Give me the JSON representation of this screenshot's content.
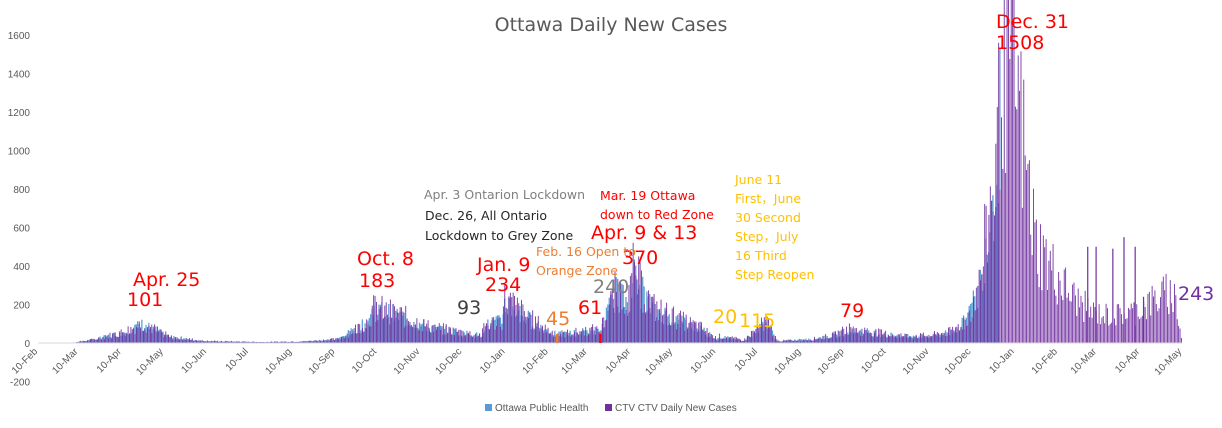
{
  "chart_data": {
    "type": "bar",
    "title": "Ottawa Daily New Cases",
    "xlabel": "",
    "ylabel": "",
    "ylim": [
      -200,
      1600
    ],
    "yticks": [
      "-200",
      "0",
      "200",
      "400",
      "600",
      "800",
      "1000",
      "1200",
      "1400",
      "1600"
    ],
    "x_tick_labels": [
      "10-Feb",
      "10-Mar",
      "10-Apr",
      "10-May",
      "10-Jun",
      "10-Jul",
      "10-Aug",
      "10-Sep",
      "10-Oct",
      "10-Nov",
      "10-Dec",
      "10-Jan",
      "10-Feb",
      "10-Mar",
      "10-Apr",
      "10-May",
      "10-Jun",
      "10-Jul",
      "10-Aug",
      "10-Sep",
      "10-Oct",
      "10-Nov",
      "10-Dec",
      "10-Jan",
      "10-Feb",
      "10-Mar",
      "10-Apr",
      "10-May"
    ],
    "x_start_date": "2020-02-10",
    "x_end_date": "2022-05-10",
    "legend_position": "bottom",
    "grid": false,
    "series": [
      {
        "name": "Ottawa Public Health",
        "color": "#5b9bd5"
      },
      {
        "name": "CTV CTV Daily New Cases",
        "color": "#7030a0"
      }
    ],
    "key_points": [
      {
        "date": "2020-04-25",
        "value": 101
      },
      {
        "date": "2020-10-08",
        "value": 183
      },
      {
        "date": "2020-12-26",
        "value": 93
      },
      {
        "date": "2021-01-09",
        "value": 234
      },
      {
        "date": "2021-02-16",
        "value": 45
      },
      {
        "date": "2021-03-19",
        "value": 61
      },
      {
        "date": "2021-04-03",
        "value": 240
      },
      {
        "date": "2021-04-11",
        "value": 370
      },
      {
        "date": "2021-06-11",
        "value": 20
      },
      {
        "date": "2021-07-16",
        "value": 115
      },
      {
        "date": "2021-09-15",
        "value": 79
      },
      {
        "date": "2021-12-31",
        "value": 1508
      },
      {
        "date": "2022-05-03",
        "value": 243
      }
    ],
    "annotations": [
      {
        "lines": [
          "Apr. 25",
          "101"
        ],
        "color": "#ff0000"
      },
      {
        "lines": [
          "Oct. 8",
          "183"
        ],
        "color": "#ff0000"
      },
      {
        "lines": [
          "93"
        ],
        "color": "#404040"
      },
      {
        "lines": [
          "Jan. 9",
          "234"
        ],
        "color": "#ff0000"
      },
      {
        "lines": [
          "45"
        ],
        "color": "#ed7d31"
      },
      {
        "lines": [
          "61"
        ],
        "color": "#ff0000"
      },
      {
        "lines": [
          "240"
        ],
        "color": "#808080"
      },
      {
        "lines": [
          "Apr. 9 & 13",
          "370"
        ],
        "color": "#ff0000"
      },
      {
        "lines": [
          "20"
        ],
        "color": "#ffc000"
      },
      {
        "lines": [
          "115"
        ],
        "color": "#ffc000"
      },
      {
        "lines": [
          "79"
        ],
        "color": "#ff0000"
      },
      {
        "lines": [
          "Dec. 31",
          "1508"
        ],
        "color": "#ff0000"
      },
      {
        "lines": [
          "243"
        ],
        "color": "#7030a0"
      },
      {
        "lines": [
          "Apr. 3 Ontarion Lockdown"
        ],
        "color": "#808080"
      },
      {
        "lines": [
          "Dec. 26, All Ontario",
          "Lockdown to Grey Zone"
        ],
        "color": "#262626"
      },
      {
        "lines": [
          "Feb. 16 Open to",
          "Orange Zone"
        ],
        "color": "#ed7d31"
      },
      {
        "lines": [
          "Mar. 19 Ottawa",
          "down to Red Zone"
        ],
        "color": "#ff0000"
      },
      {
        "lines": [
          "June 11",
          "First，June",
          "30 Second",
          "Step，July",
          "16 Third",
          "Step Reopen"
        ],
        "color": "#ffc000"
      }
    ],
    "markers": [
      {
        "date": "2021-02-16",
        "color": "#ed7d31"
      },
      {
        "date": "2021-03-19",
        "color": "#ff0000"
      }
    ]
  }
}
